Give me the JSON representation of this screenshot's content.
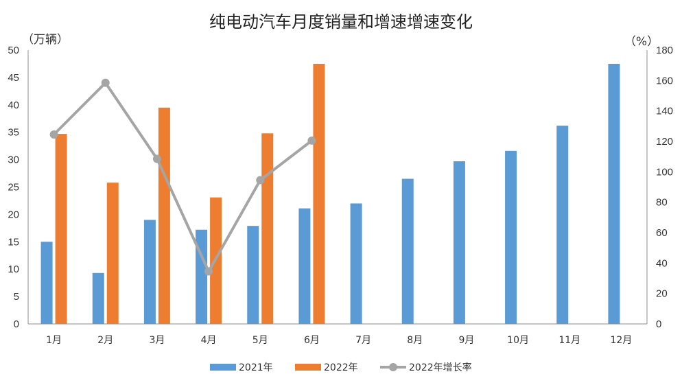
{
  "chart_data": {
    "type": "bar+line",
    "title": "纯电动汽车月度销量和增速增速变化",
    "left_axis_label": "（万辆）",
    "right_axis_label": "（%）",
    "categories": [
      "1月",
      "2月",
      "3月",
      "4月",
      "5月",
      "6月",
      "7月",
      "8月",
      "9月",
      "10月",
      "11月",
      "12月"
    ],
    "y_left": {
      "min": 0,
      "max": 50,
      "ticks": [
        0,
        5,
        10,
        15,
        20,
        25,
        30,
        35,
        40,
        45,
        50
      ]
    },
    "y_right": {
      "min": 0,
      "max": 180,
      "ticks": [
        0,
        20,
        40,
        60,
        80,
        100,
        120,
        140,
        160,
        180
      ]
    },
    "series": [
      {
        "name": "2021年",
        "type": "bar",
        "axis": "left",
        "color": "#5B9BD5",
        "values": [
          15.0,
          9.3,
          19.0,
          17.2,
          17.9,
          21.1,
          22.0,
          26.5,
          29.7,
          31.6,
          36.2,
          47.5
        ]
      },
      {
        "name": "2022年",
        "type": "bar",
        "axis": "left",
        "color": "#ED7D31",
        "values": [
          34.7,
          25.8,
          39.5,
          23.1,
          34.8,
          47.5,
          null,
          null,
          null,
          null,
          null,
          null
        ]
      },
      {
        "name": "2022年增长率",
        "type": "line",
        "axis": "right",
        "color": "#A5A5A5",
        "values": [
          124.5,
          158.5,
          108.5,
          34.5,
          94.5,
          120.5,
          null,
          null,
          null,
          null,
          null,
          null
        ]
      }
    ]
  }
}
